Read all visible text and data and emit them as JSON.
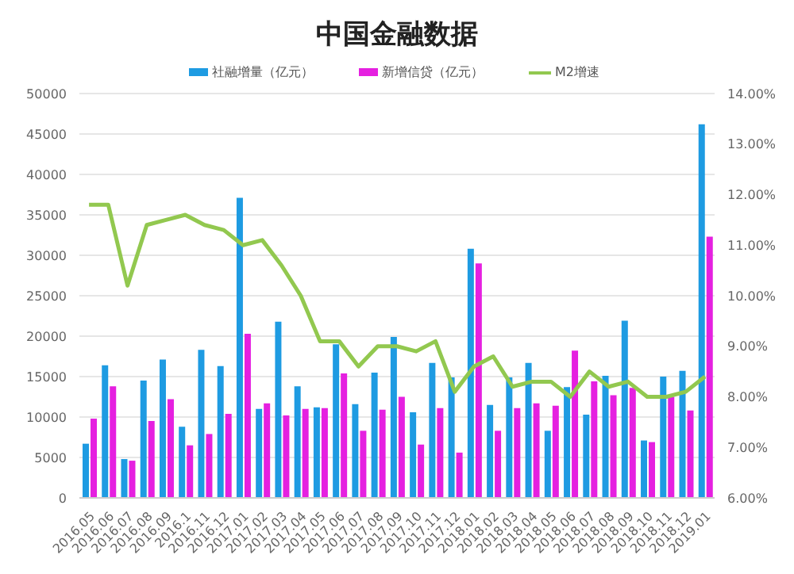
{
  "chart_data": {
    "type": "bar",
    "title": "中国金融数据",
    "categories": [
      "2016.05",
      "2016.06",
      "2016.07",
      "2016.08",
      "2016.09",
      "2016.1",
      "2016.11",
      "2016.12",
      "2017.01",
      "2017.02",
      "2017.03",
      "2017.04",
      "2017.05",
      "2017.06",
      "2017.07",
      "2017.08",
      "2017.09",
      "2017.10",
      "2017.11",
      "2017.12",
      "2018.01",
      "2018.02",
      "2018.03",
      "2018.04",
      "2018.05",
      "2018.06",
      "2018.07",
      "2018.08",
      "2018.09",
      "2018.10",
      "2018.11",
      "2018.12",
      "2019.01"
    ],
    "series": [
      {
        "name": "社融增量（亿元）",
        "color": "#1e9be2",
        "values": [
          6700,
          16400,
          4800,
          14500,
          17100,
          8800,
          18300,
          16300,
          37100,
          11000,
          21800,
          13800,
          11200,
          19000,
          11600,
          15500,
          19900,
          10600,
          16700,
          14900,
          30800,
          11500,
          14900,
          16700,
          8300,
          13700,
          10300,
          15100,
          21900,
          7100,
          15000,
          15700,
          46200
        ]
      },
      {
        "name": "新增信贷（亿元）",
        "color": "#e520e0",
        "values": [
          9800,
          13800,
          4600,
          9500,
          12200,
          6500,
          7900,
          10400,
          20300,
          11700,
          10200,
          11000,
          11100,
          15400,
          8300,
          10900,
          12500,
          6600,
          11100,
          5600,
          29000,
          8300,
          11100,
          11700,
          11400,
          18200,
          14400,
          12700,
          13600,
          6900,
          12500,
          10800,
          32300
        ]
      },
      {
        "name": "M2增速",
        "type": "line",
        "axis": "y2",
        "color": "#92c84f",
        "values": [
          11.8,
          11.8,
          10.2,
          11.4,
          11.5,
          11.6,
          11.4,
          11.3,
          11.0,
          11.1,
          10.6,
          10.0,
          9.1,
          9.1,
          8.6,
          9.0,
          9.0,
          8.9,
          9.1,
          8.1,
          8.6,
          8.8,
          8.2,
          8.3,
          8.3,
          8.0,
          8.5,
          8.2,
          8.3,
          8.0,
          8.0,
          8.1,
          8.4
        ]
      }
    ],
    "ylim": [
      0,
      50000
    ],
    "yticks": [
      0,
      5000,
      10000,
      15000,
      20000,
      25000,
      30000,
      35000,
      40000,
      45000,
      50000
    ],
    "y2lim": [
      6,
      14
    ],
    "y2ticks": [
      {
        "value": 6,
        "label": "6.00%"
      },
      {
        "value": 7,
        "label": "7.00%"
      },
      {
        "value": 8,
        "label": "8.00%"
      },
      {
        "value": 9,
        "label": "9.00%"
      },
      {
        "value": 10,
        "label": "10.00%"
      },
      {
        "value": 11,
        "label": "11.00%"
      },
      {
        "value": 12,
        "label": "12.00%"
      },
      {
        "value": 13,
        "label": "13.00%"
      },
      {
        "value": 14,
        "label": "14.00%"
      }
    ],
    "grid": "y",
    "legend": "top",
    "marker": "none",
    "line_style": "solid"
  }
}
